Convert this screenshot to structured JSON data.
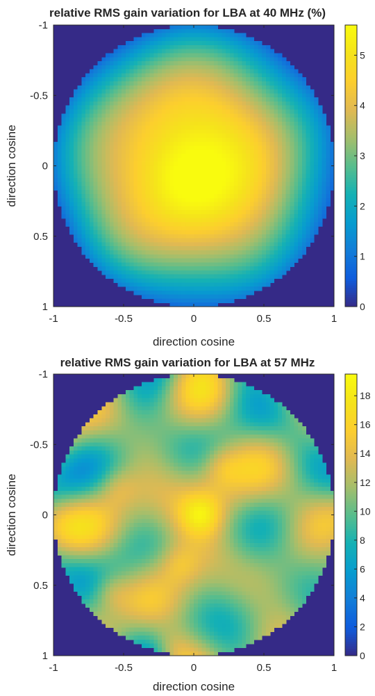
{
  "chart_data": [
    {
      "type": "heatmap",
      "title": "relative RMS gain variation for LBA at 40 MHz (%)",
      "xlabel": "direction cosine",
      "ylabel": "direction cosine",
      "xlim": [
        -1,
        1
      ],
      "ylim": [
        -1,
        1
      ],
      "y_direction": "reversed",
      "xticks": [
        "-1",
        "-0.5",
        "0",
        "0.5",
        "1"
      ],
      "yticks": [
        "-1",
        "-0.5",
        "0",
        "0.5",
        "1"
      ],
      "colorbar": {
        "ticks": [
          "0",
          "1",
          "2",
          "3",
          "4",
          "5"
        ],
        "range": [
          0,
          5.6
        ],
        "colormap": "parula"
      },
      "field": {
        "background_value": 0,
        "radius": 1,
        "peaks": [
          {
            "x": -0.05,
            "y": 0.1,
            "value": 5.5
          },
          {
            "x": 0.1,
            "y": -0.3,
            "value": 4.6
          },
          {
            "x": -0.35,
            "y": 0.05,
            "value": 4.5
          }
        ],
        "edge_value": 1.0
      }
    },
    {
      "type": "heatmap",
      "title": "relative RMS gain variation for LBA at 57 MHz",
      "xlabel": "direction cosine",
      "ylabel": "direction cosine",
      "xlim": [
        -1,
        1
      ],
      "ylim": [
        -1,
        1
      ],
      "y_direction": "reversed",
      "xticks": [
        "-1",
        "-0.5",
        "0",
        "0.5",
        "1"
      ],
      "yticks": [
        "-1",
        "-0.5",
        "0",
        "0.5",
        "1"
      ],
      "colorbar": {
        "ticks": [
          "0",
          "2",
          "4",
          "6",
          "8",
          "10",
          "12",
          "14",
          "16",
          "18"
        ],
        "range": [
          0,
          19.5
        ],
        "colormap": "parula"
      },
      "field": {
        "background_value": 0,
        "radius": 1,
        "peaks": [
          {
            "x": 0.05,
            "y": 0.0,
            "value": 18
          },
          {
            "x": -0.6,
            "y": 0.55,
            "value": 16
          },
          {
            "x": -0.1,
            "y": 0.35,
            "value": 15
          },
          {
            "x": 0.2,
            "y": -0.35,
            "value": 15
          },
          {
            "x": -0.55,
            "y": -0.2,
            "value": 15
          },
          {
            "x": -0.15,
            "y": 0.95,
            "value": 15
          }
        ],
        "base_value": 11
      }
    }
  ]
}
